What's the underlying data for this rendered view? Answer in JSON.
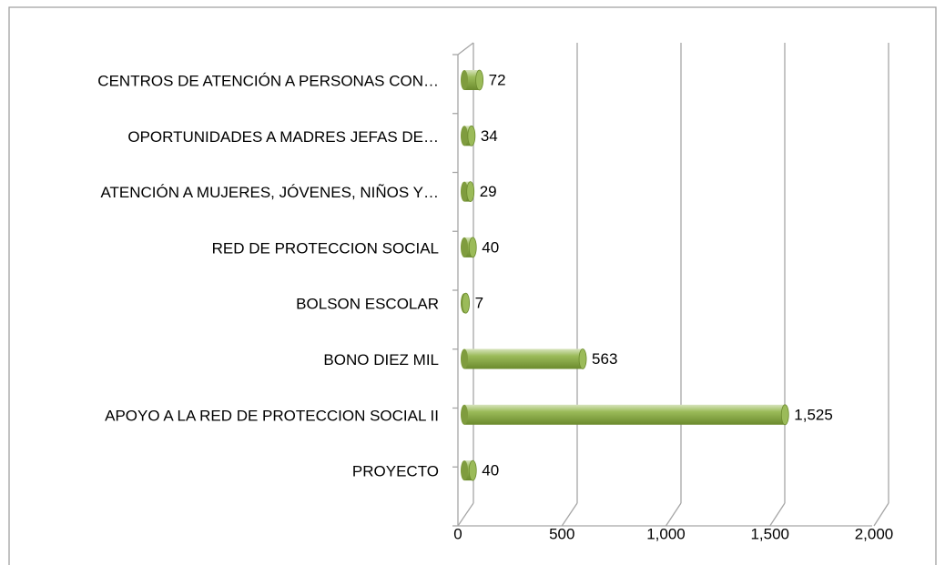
{
  "chart_data": {
    "type": "bar",
    "orientation": "horizontal",
    "categories": [
      "CENTROS DE ATENCIÓN A PERSONAS  CON…",
      "OPORTUNIDADES A MADRES JEFAS DE…",
      "ATENCIÓN A MUJERES, JÓVENES, NIÑOS Y…",
      "RED DE PROTECCION SOCIAL",
      "BOLSON ESCOLAR",
      "BONO DIEZ MIL",
      "APOYO A LA RED DE PROTECCION SOCIAL II",
      "PROYECTO"
    ],
    "values": [
      72,
      34,
      29,
      40,
      7,
      563,
      1525,
      40
    ],
    "value_labels": [
      "72",
      "34",
      "29",
      "40",
      "7",
      "563",
      "1,525",
      "40"
    ],
    "color": "#9bbb59",
    "xlim": [
      0,
      2000
    ],
    "xticks": [
      0,
      500,
      {
        "value": 1000,
        "label": "1,000"
      },
      {
        "value": 1500,
        "label": "1,500"
      },
      {
        "value": 2000,
        "label": "2,000"
      }
    ],
    "grid": true
  }
}
